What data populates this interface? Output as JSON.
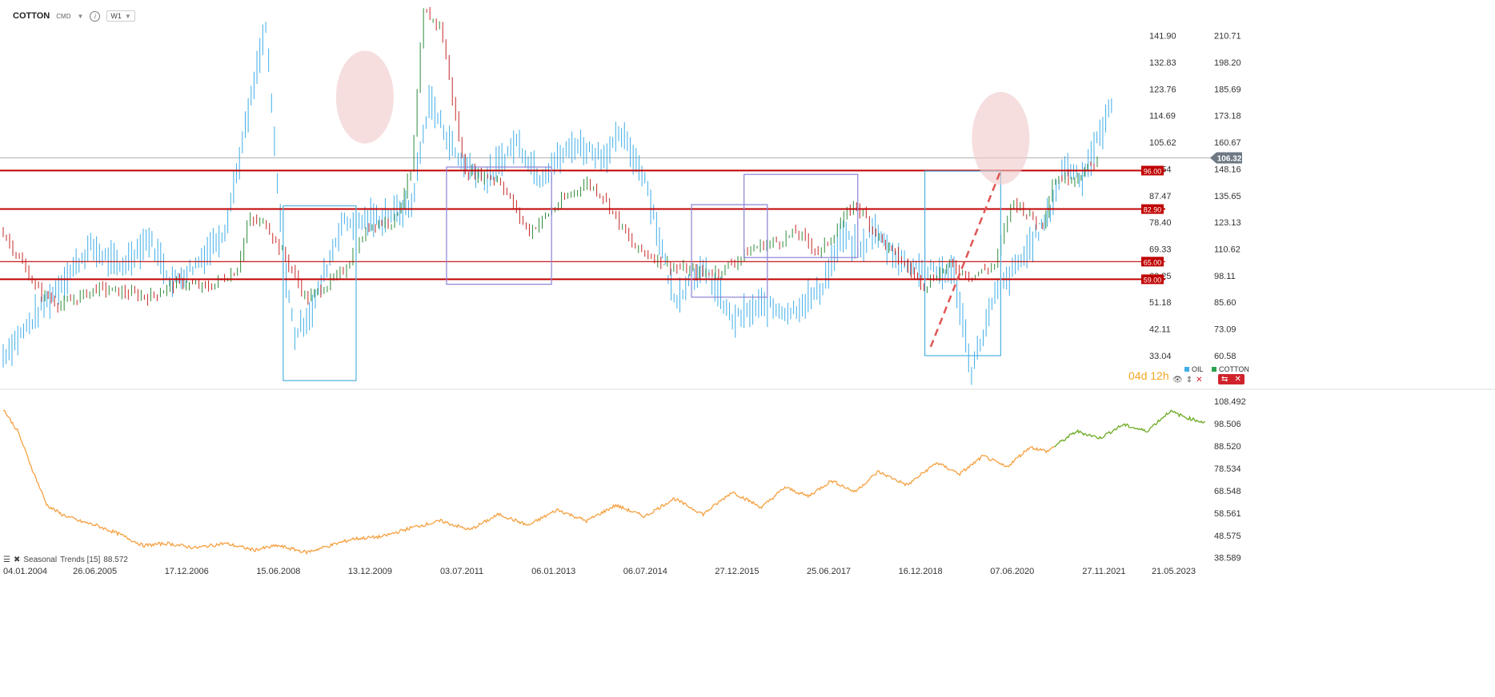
{
  "toolbar": {
    "symbol": "COTTON",
    "exchange": "CMD",
    "timeframe": "W1"
  },
  "legend": {
    "series_1": "OIL",
    "series_2": "COTTON",
    "series_1_color": "#41aee8",
    "series_2_color": "#2ea44f"
  },
  "countdown": {
    "days": "04",
    "d": "d",
    "hours": "12",
    "h": "h"
  },
  "seasonal": {
    "label": "Seasonal",
    "indicator": "Trends [15]",
    "value": "88.572"
  },
  "colors": {
    "oil": "#41aee8",
    "candle_up": "#2e8b3a",
    "candle_down": "#c62828",
    "support_line": "#c00000",
    "trend_orange": "#f5a040",
    "trend_green": "#6aaa20",
    "box_blue": "#4fb2df",
    "box_purple": "#8b82d4",
    "ellipse": "#f0c8c8"
  },
  "chart_data": [
    {
      "type": "line",
      "panel": "main",
      "x_labels": [
        "04.01.2004",
        "26.06.2005",
        "17.12.2006",
        "15.06.2008",
        "13.12.2009",
        "03.07.2011",
        "06.01.2013",
        "06.07.2014",
        "27.12.2015",
        "25.06.2017",
        "16.12.2018",
        "07.06.2020",
        "27.11.2021",
        "21.05.2023"
      ],
      "x_range": [
        2004.0,
        2023.4
      ],
      "left_axis_ticks": [
        "141.90",
        "132.83",
        "123.76",
        "114.69",
        "105.62",
        "96.54",
        "87.47",
        "78.40",
        "69.33",
        "60.25",
        "51.18",
        "42.11",
        "33.04"
      ],
      "right_axis_ticks": [
        "210.71",
        "198.20",
        "185.69",
        "173.18",
        "160.67",
        "148.16",
        "135.65",
        "123.13",
        "110.62",
        "98.11",
        "85.60",
        "73.09",
        "60.58"
      ],
      "left_ylim": [
        24.0,
        147.0
      ],
      "right_ylim": [
        48.1,
        218.0
      ],
      "current_value": "106.32",
      "horizontal_levels": [
        {
          "label": "96.00",
          "value": 96.0
        },
        {
          "label": "82.90",
          "value": 82.9
        },
        {
          "label": "65.00",
          "value": 65.0
        },
        {
          "label": "59.00",
          "value": 59.0
        }
      ],
      "series": [
        {
          "name": "OIL",
          "axis": "left",
          "x": [
            2004.0,
            2004.5,
            2005.0,
            2005.5,
            2006.0,
            2006.5,
            2006.9,
            2007.3,
            2007.8,
            2008.0,
            2008.5,
            2008.8,
            2009.0,
            2009.3,
            2009.8,
            2010.5,
            2011.0,
            2011.3,
            2011.8,
            2012.3,
            2012.8,
            2013.2,
            2013.8,
            2014.3,
            2014.6,
            2015.0,
            2015.5,
            2015.9,
            2016.1,
            2016.5,
            2017.0,
            2017.5,
            2018.0,
            2018.4,
            2018.7,
            2018.9,
            2019.4,
            2019.9,
            2020.3,
            2020.6,
            2021.0,
            2021.5,
            2021.9,
            2022.2,
            2022.5,
            2022.8,
            2023.0
          ],
          "values": [
            33,
            45,
            58,
            70,
            63,
            73,
            58,
            64,
            76,
            95,
            145,
            65,
            40,
            49,
            78,
            80,
            84,
            120,
            100,
            93,
            106,
            94,
            105,
            101,
            108,
            94,
            52,
            62,
            60,
            45,
            50,
            48,
            55,
            74,
            68,
            76,
            65,
            62,
            61,
            28,
            53,
            67,
            80,
            98,
            94,
            108,
            118
          ]
        },
        {
          "name": "COTTON",
          "axis": "left",
          "x": [
            2004.0,
            2004.6,
            2005.0,
            2005.6,
            2006.5,
            2007.0,
            2007.5,
            2008.0,
            2008.2,
            2008.5,
            2008.9,
            2009.2,
            2009.8,
            2010.3,
            2010.7,
            2011.0,
            2011.2,
            2011.5,
            2011.9,
            2012.5,
            2013.0,
            2013.6,
            2014.0,
            2014.3,
            2014.8,
            2015.5,
            2016.0,
            2016.3,
            2016.9,
            2017.3,
            2017.6,
            2018.0,
            2018.6,
            2019.1,
            2019.8,
            2020.2,
            2020.6,
            2021.0,
            2021.3,
            2021.8,
            2022.0,
            2022.4,
            2022.8
          ],
          "values": [
            75,
            55,
            50,
            56,
            53,
            58,
            56,
            62,
            79,
            78,
            64,
            52,
            61,
            78,
            79,
            96,
            150,
            145,
            96,
            93,
            75,
            86,
            92,
            87,
            70,
            63,
            61,
            62,
            70,
            72,
            75,
            68,
            85,
            71,
            57,
            64,
            60,
            64,
            86,
            77,
            93,
            94,
            100
          ]
        }
      ]
    },
    {
      "type": "line",
      "panel": "bottom",
      "title": "Seasonal Trends [15]",
      "current_value": "88.572",
      "y_ticks": [
        "108.492",
        "98.506",
        "88.520",
        "78.534",
        "68.548",
        "58.561",
        "48.575",
        "38.589"
      ],
      "ylim": [
        36.0,
        112.0
      ],
      "series": [
        {
          "name": "Seasonal Trends [15]",
          "x": [
            2004.0,
            2004.25,
            2004.5,
            2004.75,
            2005.0,
            2005.3,
            2005.6,
            2006.0,
            2006.4,
            2006.8,
            2007.3,
            2007.8,
            2008.3,
            2008.7,
            2009.2,
            2009.6,
            2010.0,
            2010.5,
            2011.0,
            2011.5,
            2012.0,
            2012.5,
            2013.0,
            2013.5,
            2014.0,
            2014.5,
            2015.0,
            2015.5,
            2016.0,
            2016.5,
            2017.0,
            2017.4,
            2017.8,
            2018.2,
            2018.6,
            2019.0,
            2019.5,
            2020.0,
            2020.4,
            2020.8,
            2021.2,
            2021.6,
            2021.9,
            2022.0,
            2022.4,
            2022.8,
            2023.2,
            2023.6,
            2024.0,
            2024.3,
            2024.6
          ],
          "values": [
            105,
            95,
            78,
            62,
            58,
            55,
            53,
            49,
            44,
            45,
            43,
            45,
            42,
            44,
            41,
            44,
            47,
            48,
            52,
            55,
            51,
            58,
            53,
            60,
            55,
            62,
            57,
            65,
            58,
            68,
            61,
            70,
            66,
            73,
            68,
            77,
            71,
            81,
            76,
            84,
            79,
            88,
            86,
            88,
            95,
            92,
            98,
            95,
            104,
            101,
            99
          ]
        }
      ]
    }
  ]
}
